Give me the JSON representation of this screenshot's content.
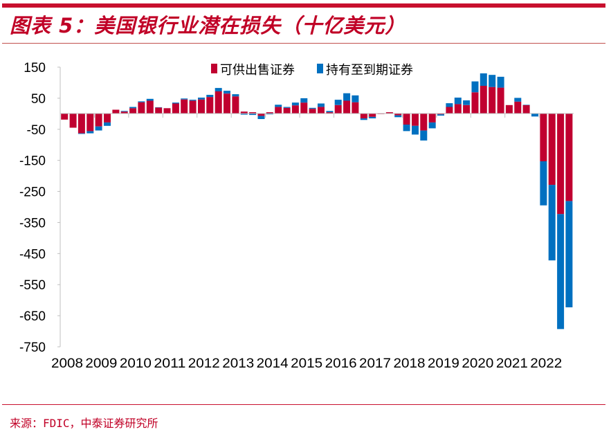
{
  "title": "图表 5：美国银行业潜在损失（十亿美元）",
  "source": "来源：FDIC，中泰证券研究所",
  "chart_data": {
    "type": "bar",
    "stacked": true,
    "title": "",
    "xlabel": "",
    "ylabel": "",
    "ylim": [
      -750,
      150
    ],
    "yticks": [
      150,
      50,
      -50,
      -150,
      -250,
      -350,
      -450,
      -550,
      -650,
      -750
    ],
    "x_tick_labels": [
      "2008",
      "2009",
      "2010",
      "2011",
      "2012",
      "2013",
      "2014",
      "2015",
      "2016",
      "2017",
      "2018",
      "2019",
      "2020",
      "2021",
      "2022"
    ],
    "frequency": "quarterly, 2008Q1-2022Q4",
    "grid": false,
    "legend_position": "top-center",
    "series": [
      {
        "name": "可供出售证券",
        "color": "#c00030",
        "values": [
          -19,
          -45,
          -63,
          -56,
          -41,
          -28,
          13,
          7,
          18,
          37,
          42,
          20,
          18,
          33,
          46,
          42,
          46,
          54,
          72,
          65,
          56,
          7,
          5,
          -7,
          5,
          22,
          19,
          27,
          36,
          16,
          22,
          5,
          28,
          42,
          37,
          -15,
          -10,
          -1,
          5,
          -5,
          -35,
          -39,
          -54,
          -28,
          -2,
          22,
          31,
          28,
          69,
          90,
          86,
          84,
          28,
          39,
          28,
          0,
          -153,
          -229,
          -323,
          -281
        ]
      },
      {
        "name": "持有至到期证券",
        "color": "#0070c0",
        "values": [
          0,
          0,
          -2,
          -7,
          -13,
          -11,
          0,
          2,
          4,
          3,
          6,
          1,
          0,
          3,
          3,
          3,
          6,
          7,
          11,
          9,
          7,
          -3,
          -4,
          -10,
          -2,
          7,
          3,
          9,
          14,
          3,
          11,
          4,
          17,
          24,
          22,
          -5,
          -5,
          0,
          0,
          -6,
          -21,
          -28,
          -32,
          -19,
          -4,
          12,
          21,
          15,
          35,
          40,
          39,
          35,
          0,
          12,
          1,
          -9,
          -142,
          -243,
          -370,
          -342
        ]
      }
    ]
  }
}
